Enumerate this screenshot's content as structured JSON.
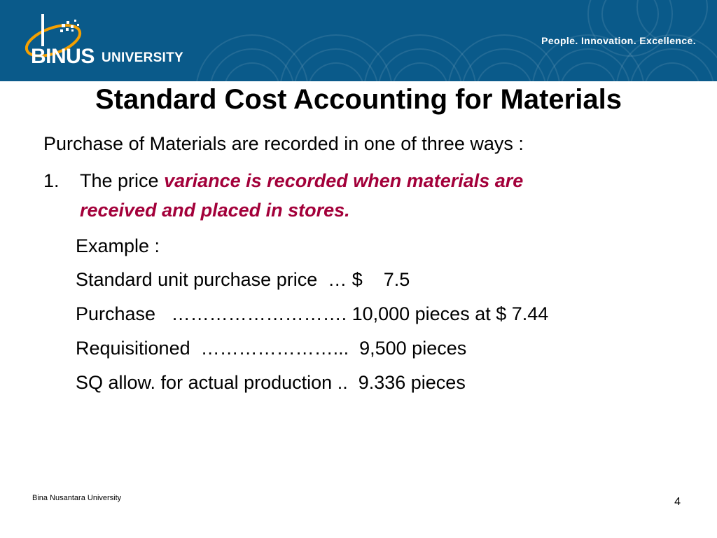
{
  "header": {
    "logo_text": "BINUS",
    "logo_subtext": "UNIVERSITY",
    "tagline": "People. Innovation. Excellence.",
    "colors": {
      "header_bg": "#0a5a8a",
      "accent_orange": "#f5a000",
      "highlight": "#a3003a"
    }
  },
  "slide": {
    "title": "Standard Cost Accounting for Materials",
    "intro": "Purchase of Materials are recorded in one of three ways :",
    "item1": {
      "number": "1.",
      "prefix": "The price ",
      "highlight_line1": "variance is recorded when materials are",
      "highlight_line2": "received and placed in stores."
    },
    "example_label": "Example :",
    "details": [
      "Standard unit purchase price  … $    7.5",
      "Purchase   ………………………. 10,000 pieces at $ 7.44",
      "Requisitioned  …………………...  9,500 pieces",
      "SQ allow. for actual production ..  9.336 pieces"
    ]
  },
  "footer": {
    "institution": "Bina Nusantara University",
    "page_number": "4"
  }
}
